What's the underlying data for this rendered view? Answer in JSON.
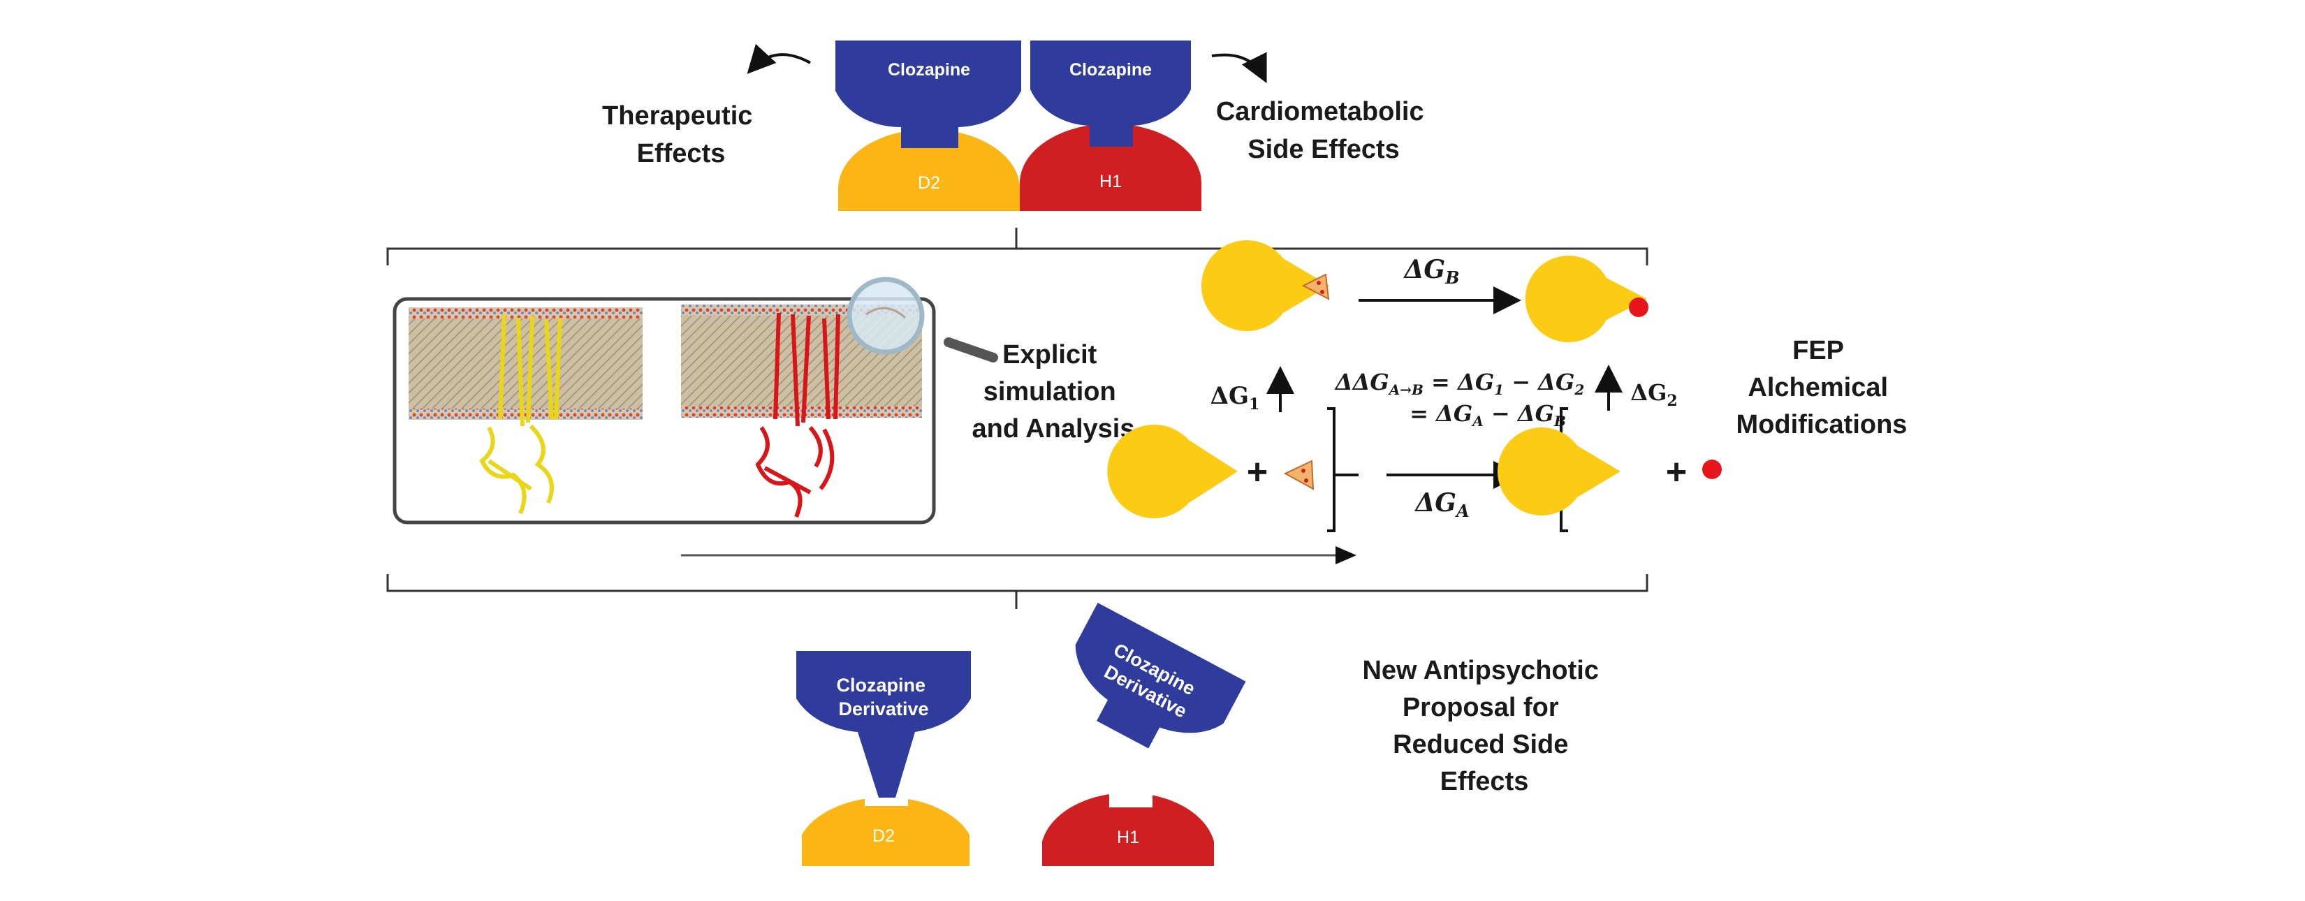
{
  "top": {
    "left_ligand": "Clozapine",
    "right_ligand": "Clozapine",
    "left_receptor": "D2",
    "right_receptor": "H1",
    "therapeutic_l1": "Therapeutic",
    "therapeutic_l2": "Effects",
    "side_l1": "Cardiometabolic",
    "side_l2": "Side Effects"
  },
  "simulation": {
    "l1": "Explicit",
    "l2": "simulation",
    "l3": "and Analysis"
  },
  "fep": {
    "l1": "FEP",
    "l2": "Alchemical",
    "l3": "Modifications",
    "dG_B": "ΔG",
    "dG_B_sub": "B",
    "dG_A": "ΔG",
    "dG_A_sub": "A",
    "dG1": "ΔG",
    "dG1_sub": "1",
    "dG2": "ΔG",
    "dG2_sub": "2",
    "eq_line1": "ΔΔG",
    "eq_line1_sub": "A→B",
    "eq_line1_rest": " = ΔG",
    "eq_line1_s1": "1",
    "eq_line1_mid": " − ΔG",
    "eq_line1_s2": "2",
    "eq_line2": "= ΔG",
    "eq_line2_s1": "A",
    "eq_line2_mid": " − ΔG",
    "eq_line2_s2": "B",
    "plus": "+"
  },
  "bottom": {
    "left_ligand_l1": "Clozapine",
    "left_ligand_l2": "Derivative",
    "right_ligand_l1": "Clozapine",
    "right_ligand_l2": "Derivative",
    "left_receptor": "D2",
    "right_receptor": "H1",
    "proposal_l1": "New Antipsychotic",
    "proposal_l2": "Proposal for",
    "proposal_l3": "Reduced Side",
    "proposal_l4": "Effects"
  },
  "colors": {
    "ligand": "#2f3c9c",
    "d2": "#fbb514",
    "h1": "#d01f20",
    "pacman": "#fccc14",
    "dot": "#e8141b",
    "protein_d2": "#f2e41c",
    "protein_h1": "#d8161a"
  }
}
